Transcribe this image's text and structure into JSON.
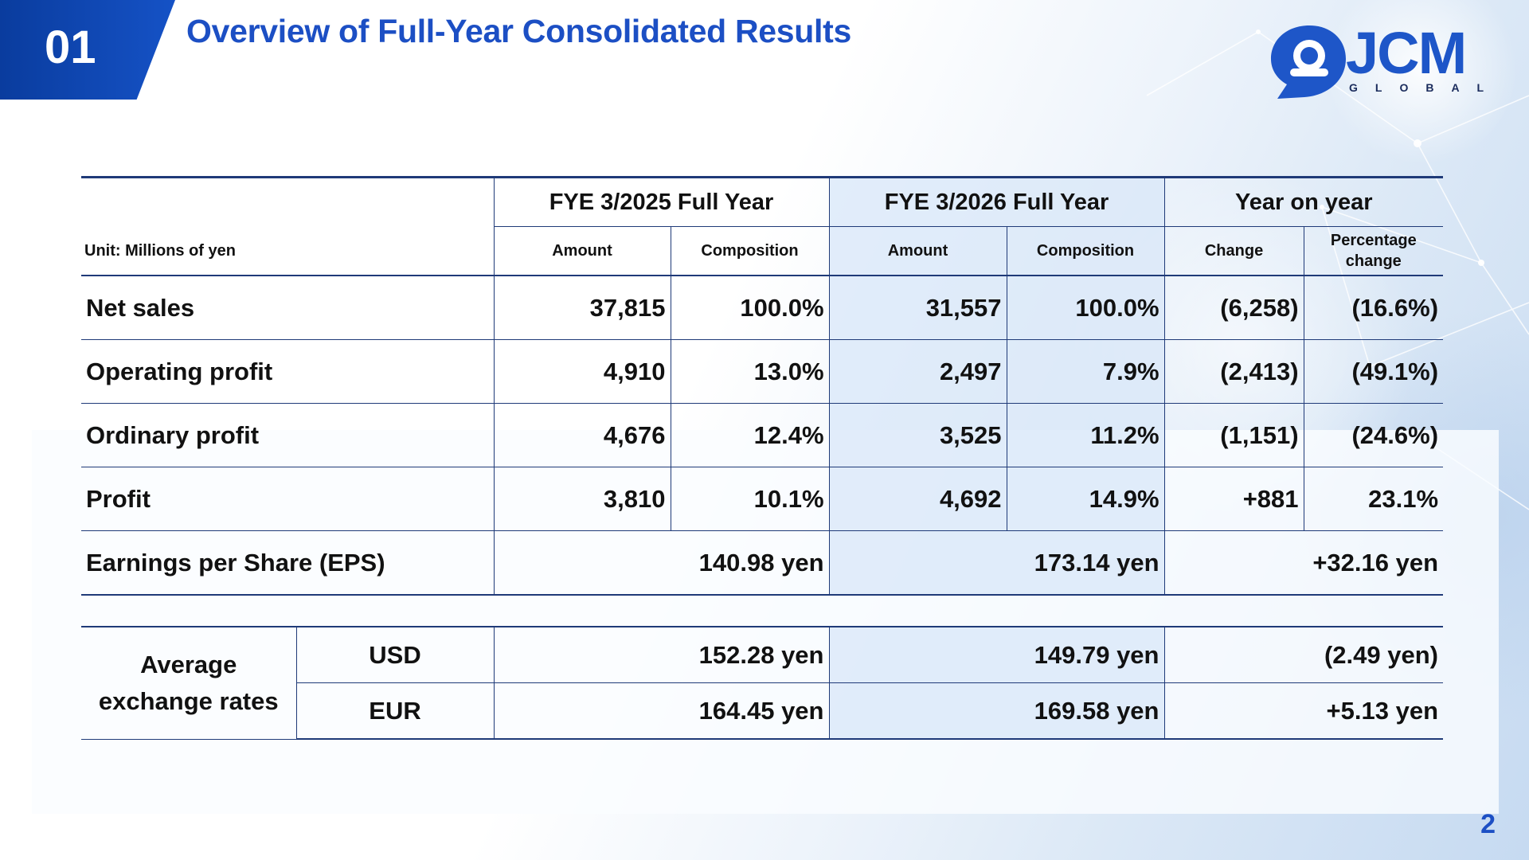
{
  "header": {
    "section_number": "01",
    "title": "Overview of Full-Year Consolidated Results"
  },
  "logo": {
    "main": "JCM",
    "sub": "GLOBAL"
  },
  "colors": {
    "brand_blue": "#1c4fc4",
    "badge_blue": "#0a3c9e",
    "rule": "#1f3a78",
    "fy2026_shade": "#d8e7f8"
  },
  "table": {
    "unit_label": "Unit: Millions of yen",
    "group_headers": [
      "FYE 3/2025 Full Year",
      "FYE 3/2026 Full Year",
      "Year on year"
    ],
    "sub_headers": [
      "Amount",
      "Composition",
      "Amount",
      "Composition",
      "Change",
      "Percentage change"
    ],
    "rows": [
      {
        "label": "Net sales",
        "fy2025_amount": "37,815",
        "fy2025_comp": "100.0%",
        "fy2026_amount": "31,557",
        "fy2026_comp": "100.0%",
        "change": "(6,258)",
        "pct_change": "(16.6%)"
      },
      {
        "label": "Operating profit",
        "fy2025_amount": "4,910",
        "fy2025_comp": "13.0%",
        "fy2026_amount": "2,497",
        "fy2026_comp": "7.9%",
        "change": "(2,413)",
        "pct_change": "(49.1%)"
      },
      {
        "label": "Ordinary profit",
        "fy2025_amount": "4,676",
        "fy2025_comp": "12.4%",
        "fy2026_amount": "3,525",
        "fy2026_comp": "11.2%",
        "change": "(1,151)",
        "pct_change": "(24.6%)"
      },
      {
        "label": "Profit",
        "fy2025_amount": "3,810",
        "fy2025_comp": "10.1%",
        "fy2026_amount": "4,692",
        "fy2026_comp": "14.9%",
        "change": "+881",
        "pct_change": "23.1%"
      }
    ],
    "eps": {
      "label": "Earnings per Share (EPS)",
      "fy2025": "140.98 yen",
      "fy2026": "173.14 yen",
      "yoy": "+32.16 yen"
    }
  },
  "fx": {
    "label_line1": "Average",
    "label_line2": "exchange rates",
    "rows": [
      {
        "currency": "USD",
        "fy2025": "152.28 yen",
        "fy2026": "149.79 yen",
        "yoy": "(2.49 yen)"
      },
      {
        "currency": "EUR",
        "fy2025": "164.45 yen",
        "fy2026": "169.58 yen",
        "yoy": "+5.13 yen"
      }
    ]
  },
  "page_number": "2"
}
